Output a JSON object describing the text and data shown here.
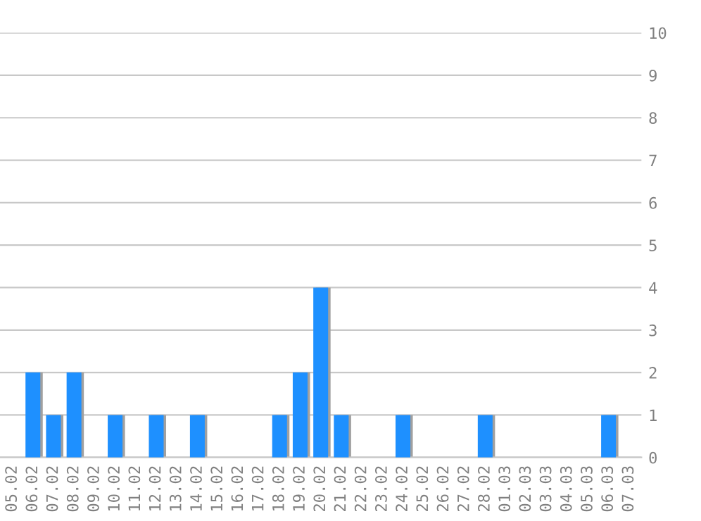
{
  "chart_data": {
    "type": "bar",
    "categories": [
      "05.02",
      "06.02",
      "07.02",
      "08.02",
      "09.02",
      "10.02",
      "11.02",
      "12.02",
      "13.02",
      "14.02",
      "15.02",
      "16.02",
      "17.02",
      "18.02",
      "19.02",
      "20.02",
      "21.02",
      "22.02",
      "23.02",
      "24.02",
      "25.02",
      "26.02",
      "27.02",
      "28.02",
      "01.03",
      "02.03",
      "03.03",
      "04.03",
      "05.03",
      "06.03",
      "07.03"
    ],
    "values": [
      0,
      2,
      1,
      2,
      0,
      1,
      0,
      1,
      0,
      1,
      0,
      0,
      0,
      1,
      2,
      4,
      1,
      0,
      0,
      1,
      0,
      0,
      0,
      1,
      0,
      0,
      0,
      0,
      0,
      1,
      0
    ],
    "color": "#1e90ff",
    "ylim": [
      0,
      10
    ],
    "yticks": [
      0,
      1,
      2,
      3,
      4,
      5,
      6,
      7,
      8,
      9,
      10
    ],
    "grid": "y"
  }
}
